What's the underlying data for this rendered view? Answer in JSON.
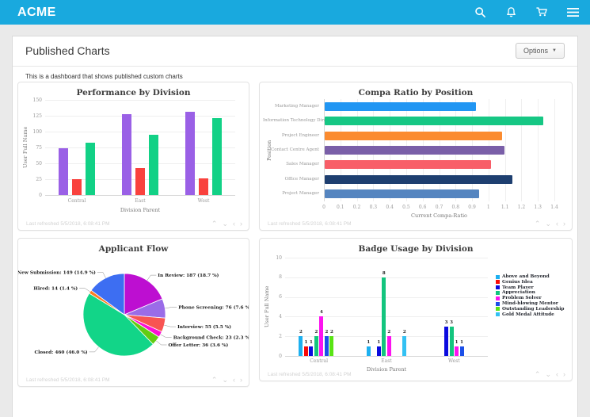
{
  "header": {
    "brand": "ACME"
  },
  "page": {
    "title": "Published Charts",
    "options_label": "Options",
    "options_caret": "▼",
    "description": "This is a dashboard that shows published custom charts",
    "last_refreshed": "Last refreshed 5/5/2018, 6:08:41 PM",
    "card_controls": {
      "up": "⌃",
      "down": "⌄",
      "prev": "‹",
      "next": "›"
    }
  },
  "chart_data": [
    {
      "type": "bar",
      "title": "Performance by Division",
      "xlabel": "Division Parent",
      "ylabel": "User Full Name",
      "ylim": [
        0,
        150
      ],
      "yticks": [
        0,
        25,
        50,
        75,
        100,
        125,
        150
      ],
      "grid": true,
      "legend_position": "none",
      "categories": [
        "Central",
        "East",
        "West"
      ],
      "series": [
        {
          "color": "#9a60e6",
          "values": [
            74,
            128,
            131
          ]
        },
        {
          "color": "#f9423e",
          "values": [
            25,
            43,
            26
          ]
        },
        {
          "color": "#12d186",
          "values": [
            82,
            95,
            121
          ]
        }
      ]
    },
    {
      "type": "bar-horizontal",
      "title": "Compa Ratio by Position",
      "xlabel": "Current Compa-Ratio",
      "ylabel": "Position",
      "xlim": [
        0,
        1.4
      ],
      "xticks": [
        0,
        0.1,
        0.2,
        0.3,
        0.4,
        0.5,
        0.6,
        0.7,
        0.8,
        0.9,
        1,
        1.1,
        1.2,
        1.3,
        1.4
      ],
      "grid": true,
      "categories": [
        "Marketing Manager",
        "Information Technology Director",
        "Project Engineer",
        "Contact Centre Agent",
        "Sales Manager",
        "Office Manager",
        "Project Manager"
      ],
      "values": [
        0.92,
        1.33,
        1.08,
        1.09,
        1.01,
        1.14,
        0.94
      ],
      "colors": [
        "#2196f3",
        "#16c784",
        "#fb8b2f",
        "#7a5fa8",
        "#f85e68",
        "#1e3f70",
        "#5585c0"
      ]
    },
    {
      "type": "pie",
      "title": "Applicant Flow",
      "slices": [
        {
          "label": "In Review",
          "value": 187,
          "pct": 18.7,
          "color": "#bd0fd1"
        },
        {
          "label": "Phone Screening",
          "value": 76,
          "pct": 7.6,
          "color": "#9a6ce8"
        },
        {
          "label": "Interview",
          "value": 55,
          "pct": 5.5,
          "color": "#f85453"
        },
        {
          "label": "Background Check",
          "value": 23,
          "pct": 2.3,
          "color": "#fb10d4"
        },
        {
          "label": "Offer Letter",
          "value": 36,
          "pct": 3.6,
          "color": "#62cc12"
        },
        {
          "label": "Closed",
          "value": 460,
          "pct": 46.0,
          "color": "#12d588"
        },
        {
          "label": "Hired",
          "value": 14,
          "pct": 1.4,
          "color": "#fd7d20"
        },
        {
          "label": "New Submission",
          "value": 149,
          "pct": 14.9,
          "color": "#3d6ef2"
        }
      ]
    },
    {
      "type": "bar",
      "title": "Badge Usage by Division",
      "xlabel": "Division Parent",
      "ylabel": "User Full Name",
      "ylim": [
        0,
        10
      ],
      "yticks": [
        0,
        2,
        4,
        6,
        8,
        10
      ],
      "grid": true,
      "legend_position": "right",
      "categories": [
        "Central",
        "East",
        "West"
      ],
      "legend": [
        {
          "label": "Above and Beyond",
          "color": "#1db0f0"
        },
        {
          "label": "Genius Idea",
          "color": "#fb0b07"
        },
        {
          "label": "Team Player",
          "color": "#0b0bdf"
        },
        {
          "label": "Appreciation",
          "color": "#13c57e"
        },
        {
          "label": "Problem Solver",
          "color": "#fc13f0"
        },
        {
          "label": "Mind-blowing Mentor",
          "color": "#1b4fe8"
        },
        {
          "label": "Outstanding Leadership",
          "color": "#59e414"
        },
        {
          "label": "Gold Medal Attitude",
          "color": "#33c1f3"
        }
      ],
      "groups": [
        {
          "category": "Central",
          "bars": [
            {
              "series": "Above and Beyond",
              "value": 2
            },
            {
              "series": "Genius Idea",
              "value": 1
            },
            {
              "series": "Team Player",
              "value": 1
            },
            {
              "series": "Appreciation",
              "value": 2
            },
            {
              "series": "Problem Solver",
              "value": 4
            },
            {
              "series": "Mind-blowing Mentor",
              "value": 2
            },
            {
              "series": "Outstanding Leadership",
              "value": 2
            }
          ]
        },
        {
          "category": "East",
          "bars": [
            {
              "series": "Above and Beyond",
              "value": 1
            },
            {
              "series": "Team Player",
              "value": 1
            },
            {
              "series": "Appreciation",
              "value": 8
            },
            {
              "series": "Problem Solver",
              "value": 2
            },
            {
              "series": "Gold Medal Attitude",
              "value": 2
            }
          ]
        },
        {
          "category": "West",
          "bars": [
            {
              "series": "Team Player",
              "value": 3
            },
            {
              "series": "Appreciation",
              "value": 3
            },
            {
              "series": "Problem Solver",
              "value": 1
            },
            {
              "series": "Mind-blowing Mentor",
              "value": 1
            }
          ]
        }
      ]
    }
  ]
}
